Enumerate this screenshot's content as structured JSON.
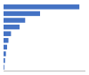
{
  "chart_data": {
    "type": "bar",
    "orientation": "horizontal",
    "categories": [
      null,
      null,
      null,
      null,
      null,
      null,
      null,
      null,
      null,
      null
    ],
    "values": [
      307496,
      148046,
      87694,
      64872,
      30241,
      19837,
      14253,
      9618,
      6042,
      2801
    ],
    "color": "#4472c4",
    "xlim": [
      0,
      332095.68
    ],
    "xticks": [],
    "grid": false,
    "tick_labels": false
  }
}
